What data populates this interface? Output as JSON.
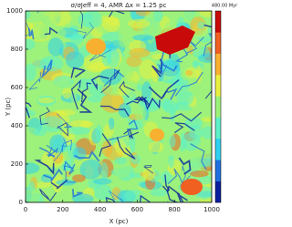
{
  "chart_data": {
    "type": "heatmap",
    "title": "σ/σJeff = 4, AMR Δx = 1.25 pc",
    "time_label": "480.00 Myr",
    "xlabel": "X (pc)",
    "ylabel": "Y (pc)",
    "xlim": [
      0,
      1000
    ],
    "ylim": [
      0,
      1000
    ],
    "xticks": [
      0,
      200,
      400,
      600,
      800,
      1000
    ],
    "yticks": [
      0,
      200,
      400,
      600,
      800,
      1000
    ],
    "colormap": [
      "#0b1f9e",
      "#1e6fe0",
      "#2fd0f0",
      "#5ef0c8",
      "#9cf27a",
      "#e8f040",
      "#f8b030",
      "#f06020",
      "#c80a0a"
    ]
  }
}
